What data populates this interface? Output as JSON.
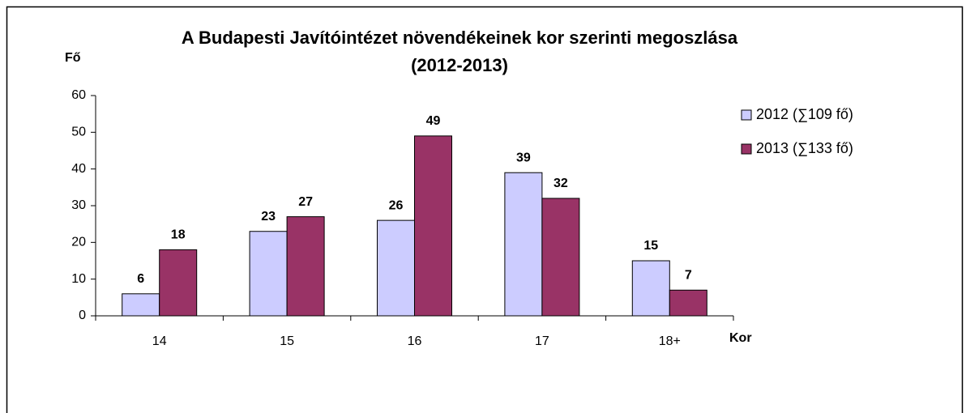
{
  "chart_data": {
    "type": "bar",
    "title": [
      "A Budapesti Javítóintézet növendékeinek kor szerinti megoszlása",
      "(2012-2013)"
    ],
    "y_label": "Fő",
    "x_label": "Kor",
    "categories": [
      "14",
      "15",
      "16",
      "17",
      "18+"
    ],
    "series": [
      {
        "name": "2012 (∑109 fő)",
        "color": "#ccccff",
        "values": [
          6,
          23,
          26,
          39,
          15
        ]
      },
      {
        "name": "2013 (∑133 fő)",
        "color": "#993366",
        "values": [
          18,
          27,
          49,
          32,
          7
        ]
      }
    ],
    "ylim": [
      0,
      60
    ],
    "yticks": [
      0,
      10,
      20,
      30,
      40,
      50,
      60
    ],
    "legend": "right",
    "grid": false
  }
}
